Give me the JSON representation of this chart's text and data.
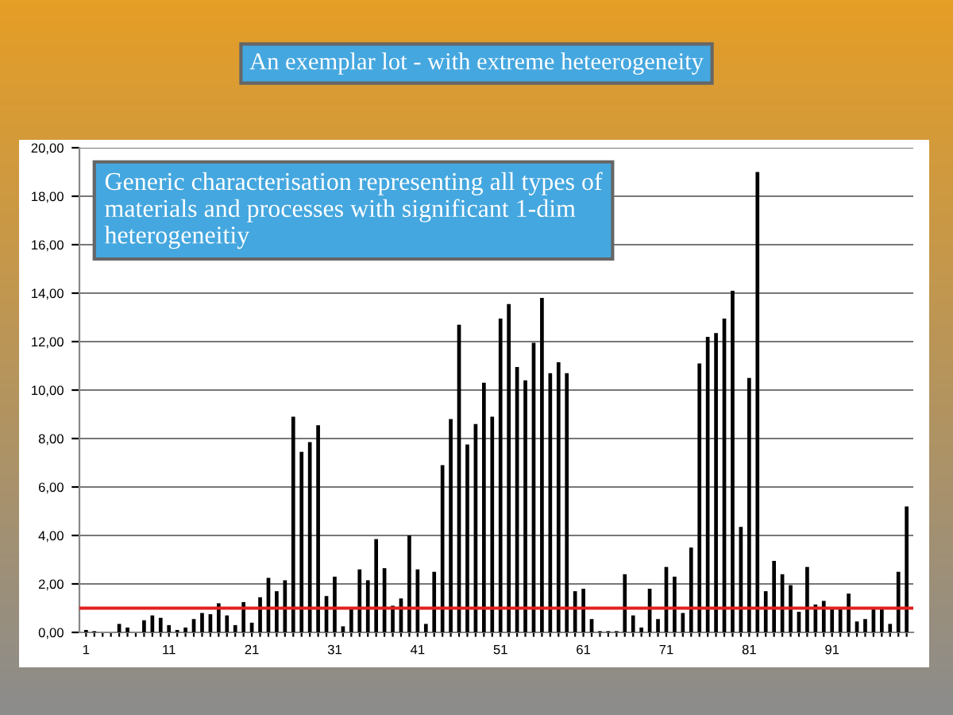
{
  "chart_data": {
    "type": "bar",
    "title": "An exemplar lot - with extreme heteerogeneity",
    "annotations": [
      "Generic characterisation representing all types of materials and processes with significant 1-dim heterogeneitiy"
    ],
    "categories": [
      "1",
      null,
      null,
      null,
      null,
      null,
      null,
      null,
      null,
      null,
      "11",
      null,
      null,
      null,
      null,
      null,
      null,
      null,
      null,
      null,
      "21",
      null,
      null,
      null,
      null,
      null,
      null,
      null,
      null,
      null,
      "31",
      null,
      null,
      null,
      null,
      null,
      null,
      null,
      null,
      null,
      "41",
      null,
      null,
      null,
      null,
      null,
      null,
      null,
      null,
      null,
      "51",
      null,
      null,
      null,
      null,
      null,
      null,
      null,
      null,
      null,
      "61",
      null,
      null,
      null,
      null,
      null,
      null,
      null,
      null,
      null,
      "71",
      null,
      null,
      null,
      null,
      null,
      null,
      null,
      null,
      null,
      "81",
      null,
      null,
      null,
      null,
      null,
      null,
      null,
      null,
      null,
      "91",
      null,
      null,
      null,
      null,
      null,
      null,
      null,
      null,
      null
    ],
    "values": [
      0.1,
      0.05,
      0,
      0,
      0.35,
      0.2,
      0,
      0.5,
      0.7,
      0.6,
      0.3,
      0.1,
      0.2,
      0.55,
      0.8,
      0.75,
      1.2,
      0.7,
      0.3,
      1.25,
      0.4,
      1.45,
      2.25,
      1.7,
      2.15,
      8.9,
      7.45,
      7.85,
      8.55,
      1.5,
      2.3,
      0.25,
      1.0,
      2.6,
      2.15,
      3.85,
      2.65,
      1.1,
      1.4,
      4.0,
      2.6,
      0.35,
      2.5,
      6.9,
      8.8,
      12.7,
      7.75,
      8.6,
      10.3,
      8.9,
      12.95,
      13.55,
      10.95,
      10.4,
      11.95,
      13.8,
      10.7,
      11.15,
      10.7,
      1.7,
      1.8,
      0.55,
      0.05,
      0.05,
      0.05,
      2.4,
      0.7,
      0.2,
      1.8,
      0.55,
      2.7,
      2.3,
      0.8,
      3.5,
      11.1,
      12.2,
      12.35,
      12.95,
      14.1,
      4.35,
      10.5,
      19.0,
      1.7,
      2.95,
      2.4,
      1.95,
      0.85,
      2.7,
      1.15,
      1.3,
      0.95,
      1.05,
      1.6,
      0.45,
      0.55,
      1.05,
      1.05,
      0.35,
      2.5,
      5.2
    ],
    "color": "#000000",
    "ylim": [
      0,
      20
    ],
    "yticks": [
      {
        "value": 0,
        "label": "0,00"
      },
      {
        "value": 2,
        "label": "2,00"
      },
      {
        "value": 4,
        "label": "4,00"
      },
      {
        "value": 6,
        "label": "6,00"
      },
      {
        "value": 8,
        "label": "8,00"
      },
      {
        "value": 10,
        "label": "10,00"
      },
      {
        "value": 12,
        "label": "12,00"
      },
      {
        "value": 14,
        "label": "14,00"
      },
      {
        "value": 16,
        "label": "16,00"
      },
      {
        "value": 18,
        "label": "18,00"
      },
      {
        "value": 20,
        "label": "20,00"
      }
    ],
    "grid": "y",
    "ref_lines": [
      {
        "axis": "y",
        "value": 1.0,
        "label": null,
        "color": "#e02020",
        "line_style": "solid"
      }
    ]
  }
}
